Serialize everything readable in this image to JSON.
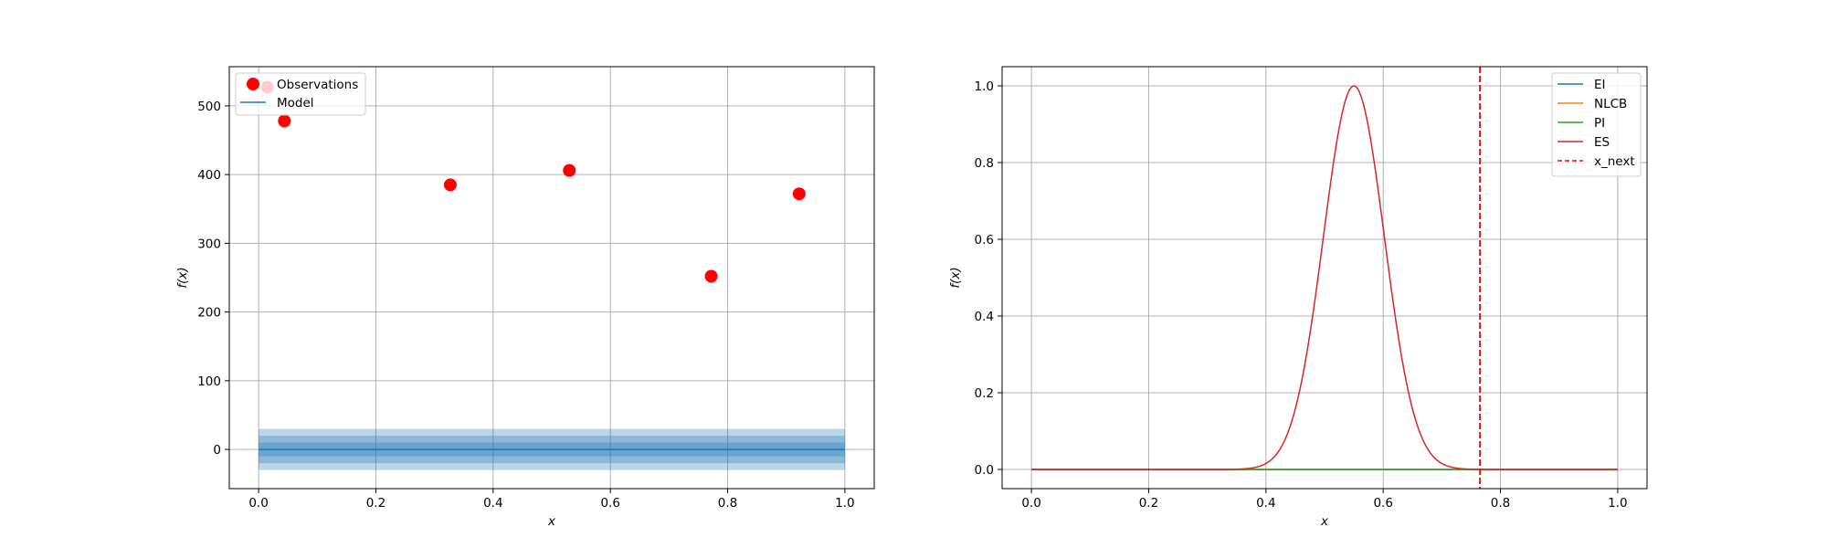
{
  "chart_data": [
    {
      "type": "scatter",
      "title": "",
      "xlabel": "x",
      "ylabel": "f(x)",
      "xlim": [
        -0.05,
        1.05
      ],
      "ylim": [
        -57,
        557
      ],
      "xticks": [
        0.0,
        0.2,
        0.4,
        0.6,
        0.8,
        1.0
      ],
      "xtick_labels": [
        "0.0",
        "0.2",
        "0.4",
        "0.6",
        "0.8",
        "1.0"
      ],
      "yticks": [
        0,
        100,
        200,
        300,
        400,
        500
      ],
      "ytick_labels": [
        "0",
        "100",
        "200",
        "300",
        "400",
        "500"
      ],
      "grid": true,
      "legend_position": "top-left",
      "observations": {
        "name": "Observations",
        "color": "#ff0000",
        "x": [
          0.015,
          0.044,
          0.327,
          0.53,
          0.772,
          0.922
        ],
        "y": [
          527,
          478,
          385,
          406,
          252,
          372
        ]
      },
      "model": {
        "name": "Model",
        "color": "#1f77b4",
        "x": [
          0.0,
          1.0
        ],
        "mean": [
          0,
          0
        ],
        "bands": [
          10,
          20,
          30
        ]
      }
    },
    {
      "type": "line",
      "title": "",
      "xlabel": "x",
      "ylabel": "f(x)",
      "xlim": [
        -0.05,
        1.05
      ],
      "ylim": [
        -0.05,
        1.05
      ],
      "xticks": [
        0.0,
        0.2,
        0.4,
        0.6,
        0.8,
        1.0
      ],
      "xtick_labels": [
        "0.0",
        "0.2",
        "0.4",
        "0.6",
        "0.8",
        "1.0"
      ],
      "yticks": [
        0.0,
        0.2,
        0.4,
        0.6,
        0.8,
        1.0
      ],
      "ytick_labels": [
        "0.0",
        "0.2",
        "0.4",
        "0.6",
        "0.8",
        "1.0"
      ],
      "grid": true,
      "legend_position": "top-right",
      "series": [
        {
          "name": "EI",
          "color": "#1f77b4",
          "x": [
            0.0,
            1.0
          ],
          "y": [
            0.0,
            0.0
          ]
        },
        {
          "name": "NLCB",
          "color": "#ff7f0e",
          "x": [
            0.0,
            1.0
          ],
          "y": [
            0.0,
            0.0
          ]
        },
        {
          "name": "PI",
          "color": "#2ca02c",
          "x": [
            0.0,
            1.0
          ],
          "y": [
            0.0,
            0.0
          ]
        },
        {
          "name": "ES",
          "color": "#d62728",
          "x": [
            0.0,
            0.3,
            0.4,
            0.42,
            0.44,
            0.46,
            0.48,
            0.5,
            0.52,
            0.54,
            0.55,
            0.56,
            0.58,
            0.6,
            0.62,
            0.64,
            0.66,
            0.68,
            0.7,
            0.72,
            0.75,
            0.8,
            1.0
          ],
          "y": [
            0.0,
            0.0,
            0.005,
            0.02,
            0.07,
            0.17,
            0.34,
            0.57,
            0.8,
            0.96,
            1.0,
            0.99,
            0.9,
            0.7,
            0.46,
            0.25,
            0.11,
            0.04,
            0.012,
            0.003,
            0.0,
            0.0,
            0.0
          ]
        }
      ],
      "vlines": [
        {
          "name": "x_next",
          "color": "#ff0000",
          "style": "dashed",
          "x": 0.765
        }
      ]
    }
  ]
}
